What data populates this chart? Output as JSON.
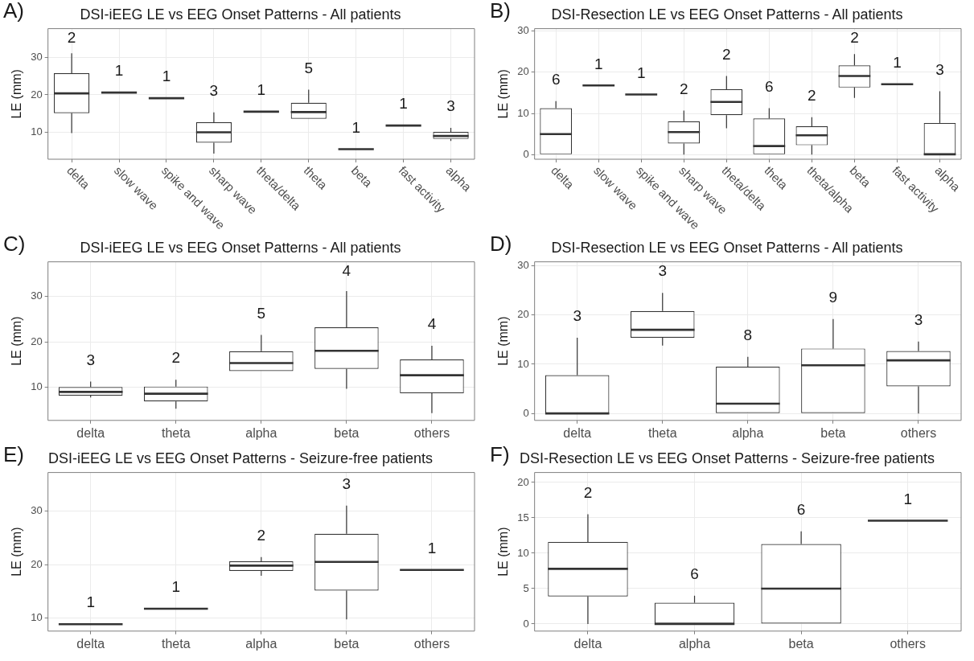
{
  "chart_data": [
    {
      "type": "box",
      "title": "DSI-iEEG LE vs EEG Onset Patterns - All patients",
      "ylabel": "LE (mm)",
      "color": "#333333",
      "grid": true,
      "legend": false,
      "categories": [
        "delta",
        "slow wave",
        "spike and wave",
        "sharp wave",
        "theta/delta",
        "theta",
        "beta",
        "fast activity",
        "alpha"
      ],
      "ylim": [
        2.8,
        37.7
      ],
      "yticks": [
        10,
        20,
        30
      ],
      "boxes": [
        {
          "low": 9.8,
          "q1": 15.1,
          "median": 20.4,
          "q3": 25.8,
          "high": 31.1
        },
        {
          "low": 20.6,
          "q1": 20.6,
          "median": 20.6,
          "q3": 20.6,
          "high": 20.6
        },
        {
          "low": 19.1,
          "q1": 19.1,
          "median": 19.1,
          "q3": 19.1,
          "high": 19.1
        },
        {
          "low": 4.3,
          "q1": 7.2,
          "median": 10,
          "q3": 12.7,
          "high": 15.3
        },
        {
          "low": 15.5,
          "q1": 15.5,
          "median": 15.5,
          "q3": 15.5,
          "high": 15.5
        },
        {
          "low": 13.6,
          "q1": 13.6,
          "median": 15.4,
          "q3": 17.9,
          "high": 21.4
        },
        {
          "low": 5.5,
          "q1": 5.5,
          "median": 5.5,
          "q3": 5.5,
          "high": 5.5
        },
        {
          "low": 11.8,
          "q1": 11.8,
          "median": 11.8,
          "q3": 11.8,
          "high": 11.8
        },
        {
          "low": 7.7,
          "q1": 8.2,
          "median": 9,
          "q3": 10.1,
          "high": 11.2
        }
      ],
      "annotations": [
        "A)",
        "2",
        "1",
        "1",
        "3",
        "1",
        "5",
        "1",
        "1",
        "3"
      ]
    },
    {
      "type": "box",
      "title": "DSI-Resection LE vs EEG Onset Patterns - All patients",
      "ylabel": "LE (mm)",
      "color": "#333333",
      "grid": true,
      "legend": false,
      "categories": [
        "delta",
        "slow wave",
        "spike and wave",
        "sharp wave",
        "theta/delta",
        "theta",
        "theta/alpha",
        "beta",
        "fast activity",
        "alpha"
      ],
      "ylim": [
        -1.1,
        30.6
      ],
      "yticks": [
        0,
        10,
        20,
        30
      ],
      "boxes": [
        {
          "low": 0,
          "q1": 0,
          "median": 5,
          "q3": 11.3,
          "high": 13
        },
        {
          "low": 16.8,
          "q1": 16.8,
          "median": 16.8,
          "q3": 16.8,
          "high": 16.8
        },
        {
          "low": 14.6,
          "q1": 14.6,
          "median": 14.6,
          "q3": 14.6,
          "high": 14.6
        },
        {
          "low": 0,
          "q1": 2.7,
          "median": 5.5,
          "q3": 8.1,
          "high": 10.7
        },
        {
          "low": 6.4,
          "q1": 9.6,
          "median": 12.8,
          "q3": 15.9,
          "high": 19.1
        },
        {
          "low": 0,
          "q1": 0,
          "median": 2.1,
          "q3": 8.8,
          "high": 11.3
        },
        {
          "low": 0,
          "q1": 2.3,
          "median": 4.7,
          "q3": 6.9,
          "high": 9.1
        },
        {
          "low": 13.8,
          "q1": 16.3,
          "median": 19.1,
          "q3": 21.7,
          "high": 24.4
        },
        {
          "low": 17.1,
          "q1": 17.1,
          "median": 17.1,
          "q3": 17.1,
          "high": 17.1
        },
        {
          "low": 0,
          "q1": 0,
          "median": 0.1,
          "q3": 7.7,
          "high": 15.4
        }
      ],
      "annotations": [
        "B)",
        "6",
        "1",
        "1",
        "2",
        "2",
        "6",
        "2",
        "2",
        "1",
        "3"
      ]
    },
    {
      "type": "box",
      "title": "DSI-iEEG LE vs EEG Onset Patterns - All patients",
      "ylabel": "LE (mm)",
      "color": "#333333",
      "grid": true,
      "legend": false,
      "categories": [
        "delta",
        "theta",
        "alpha",
        "beta",
        "others"
      ],
      "ylim": [
        2.6,
        37.7
      ],
      "yticks": [
        10,
        20,
        30
      ],
      "boxes": [
        {
          "low": 7.7,
          "q1": 8.1,
          "median": 8.9,
          "q3": 10,
          "high": 11.2
        },
        {
          "low": 5.2,
          "q1": 6.8,
          "median": 8.5,
          "q3": 10.1,
          "high": 11.6
        },
        {
          "low": 13.5,
          "q1": 13.5,
          "median": 15.3,
          "q3": 17.9,
          "high": 21.5
        },
        {
          "low": 9.6,
          "q1": 14,
          "median": 18,
          "q3": 23.2,
          "high": 31.2
        },
        {
          "low": 4.2,
          "q1": 8.6,
          "median": 12.6,
          "q3": 16.1,
          "high": 19.1
        }
      ],
      "annotations": [
        "C)",
        "3",
        "2",
        "5",
        "4",
        "4"
      ]
    },
    {
      "type": "box",
      "title": "DSI-Resection LE vs EEG Onset Patterns - All patients",
      "ylabel": "LE (mm)",
      "color": "#333333",
      "grid": true,
      "legend": false,
      "categories": [
        "delta",
        "theta",
        "alpha",
        "beta",
        "others"
      ],
      "ylim": [
        -1.4,
        30.8
      ],
      "yticks": [
        0,
        10,
        20,
        30
      ],
      "boxes": [
        {
          "low": 0,
          "q1": 0,
          "median": 0,
          "q3": 7.8,
          "high": 15.4
        },
        {
          "low": 13.8,
          "q1": 15.4,
          "median": 17,
          "q3": 20.8,
          "high": 24.5
        },
        {
          "low": 0,
          "q1": 0,
          "median": 2,
          "q3": 9.5,
          "high": 11.5
        },
        {
          "low": 0,
          "q1": 0,
          "median": 9.8,
          "q3": 13.2,
          "high": 19.2
        },
        {
          "low": 0,
          "q1": 5.5,
          "median": 10.8,
          "q3": 12.7,
          "high": 14.6
        }
      ],
      "annotations": [
        "D)",
        "3",
        "3",
        "8",
        "9",
        "3"
      ]
    },
    {
      "type": "box",
      "title": "DSI-iEEG LE vs EEG Onset Patterns - Seizure-free patients",
      "ylabel": "LE (mm)",
      "color": "#333333",
      "grid": true,
      "legend": false,
      "categories": [
        "delta",
        "theta",
        "alpha",
        "beta",
        "others"
      ],
      "ylim": [
        7.5,
        37.3
      ],
      "yticks": [
        10,
        20,
        30
      ],
      "boxes": [
        {
          "low": 8.8,
          "q1": 8.8,
          "median": 8.8,
          "q3": 8.8,
          "high": 8.8
        },
        {
          "low": 11.7,
          "q1": 11.7,
          "median": 11.7,
          "q3": 11.7,
          "high": 11.7
        },
        {
          "low": 17.9,
          "q1": 18.8,
          "median": 19.8,
          "q3": 20.6,
          "high": 21.4
        },
        {
          "low": 9.7,
          "q1": 15.1,
          "median": 20.5,
          "q3": 25.8,
          "high": 31.1
        },
        {
          "low": 19,
          "q1": 19,
          "median": 19,
          "q3": 19,
          "high": 19
        }
      ],
      "annotations": [
        "E)",
        "1",
        "1",
        "2",
        "3",
        "1"
      ]
    },
    {
      "type": "box",
      "title": "DSI-Resection LE vs EEG Onset Patterns - Seizure-free patients",
      "ylabel": "LE (mm)",
      "color": "#333333",
      "grid": true,
      "legend": false,
      "categories": [
        "delta",
        "alpha",
        "beta",
        "others"
      ],
      "ylim": [
        -1,
        21.4
      ],
      "yticks": [
        0,
        5,
        10,
        15,
        20
      ],
      "boxes": [
        {
          "low": 0,
          "q1": 3.9,
          "median": 7.8,
          "q3": 11.6,
          "high": 15.5
        },
        {
          "low": 0,
          "q1": 0,
          "median": 0,
          "q3": 3,
          "high": 4
        },
        {
          "low": 0,
          "q1": 0,
          "median": 5,
          "q3": 11.3,
          "high": 13.1
        },
        {
          "low": 14.6,
          "q1": 14.6,
          "median": 14.6,
          "q3": 14.6,
          "high": 14.6
        }
      ],
      "annotations": [
        "F)",
        "2",
        "6",
        "6",
        "1"
      ]
    }
  ]
}
